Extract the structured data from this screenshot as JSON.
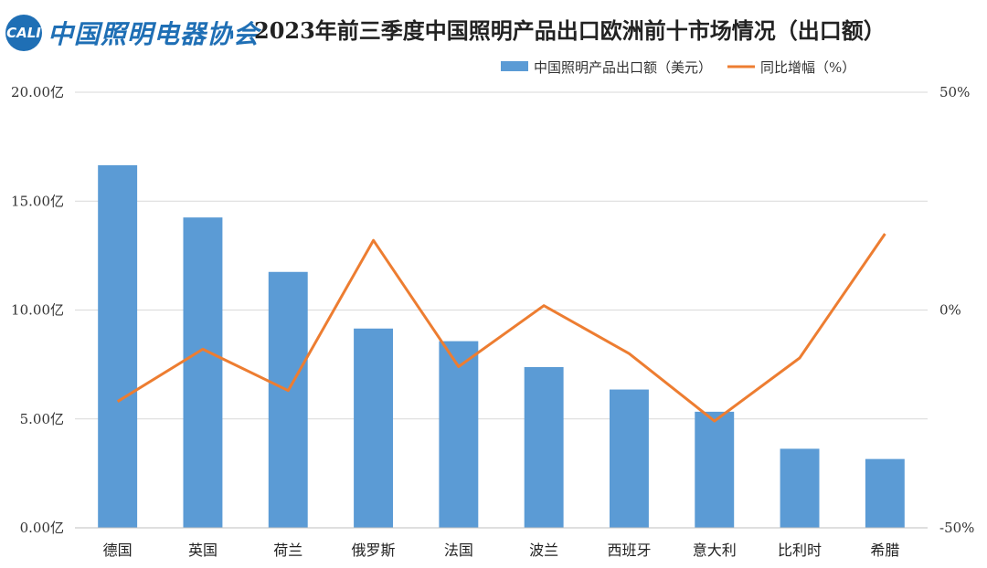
{
  "header": {
    "logo_badge": "CALI",
    "logo_text": "中国照明电器协会",
    "title": "2023年前三季度中国照明产品出口欧洲前十市场情况（出口额）"
  },
  "colors": {
    "bar": "#5b9bd5",
    "line": "#ed7d31",
    "grid": "#d9d9d9"
  },
  "chart_data": {
    "type": "bar",
    "title": "2023年前三季度中国照明产品出口欧洲前十市场情况（出口额）",
    "categories": [
      "德国",
      "英国",
      "荷兰",
      "俄罗斯",
      "法国",
      "波兰",
      "西班牙",
      "意大利",
      "比利时",
      "希腊"
    ],
    "series": [
      {
        "name": "中国照明产品出口额（美元）",
        "type": "bar",
        "axis": "left",
        "values": [
          16.65,
          14.25,
          11.75,
          9.15,
          8.57,
          7.38,
          6.35,
          5.33,
          3.63,
          3.16
        ]
      },
      {
        "name": "同比增幅（%）",
        "type": "line",
        "axis": "right",
        "values": [
          -21,
          -9,
          -18.5,
          16,
          -13,
          1,
          -10,
          -25.5,
          -11,
          17.5
        ]
      }
    ],
    "y_left": {
      "min": 0,
      "max": 20,
      "ticks": [
        "0.00亿",
        "5.00亿",
        "10.00亿",
        "15.00亿",
        "20.00亿"
      ]
    },
    "y_right": {
      "min": -50,
      "max": 50,
      "ticks": [
        "-50%",
        "0%",
        "50%"
      ]
    },
    "grid": true,
    "legend_position": "top-right"
  }
}
